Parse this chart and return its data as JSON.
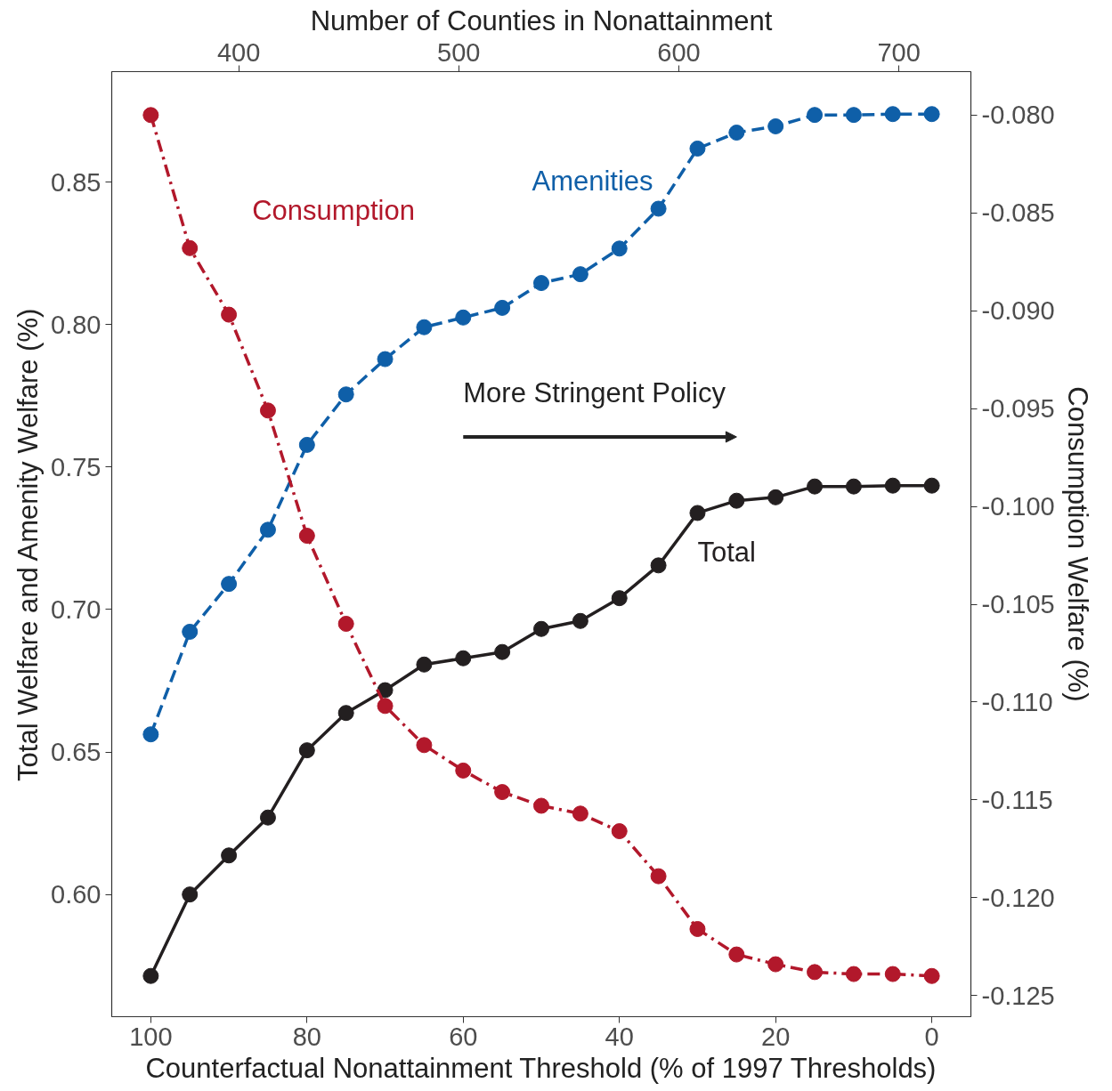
{
  "chart_data": {
    "type": "line",
    "xlabel": "Counterfactual Nonattainment Threshold (% of 1997 Thresholds)",
    "ylabel": "Total Welfare and Amenity Welfare (%)",
    "y2label": "Consumption Welfare (%)",
    "x2label": "Number of Counties in Nonattainment",
    "x": [
      100,
      95,
      90,
      85,
      80,
      75,
      70,
      65,
      60,
      55,
      50,
      45,
      40,
      35,
      30,
      25,
      20,
      15,
      10,
      5,
      0
    ],
    "xlim": [
      105,
      -5
    ],
    "xticks": [
      100,
      80,
      60,
      40,
      20,
      0
    ],
    "x2lim": [
      342.3,
      732.7
    ],
    "x2ticks": [
      400,
      500,
      600,
      700
    ],
    "ylim": [
      0.5571,
      0.8888
    ],
    "yticks": [
      {
        "value": 0.6,
        "label": "0.60"
      },
      {
        "value": 0.65,
        "label": "0.65"
      },
      {
        "value": 0.7,
        "label": "0.70"
      },
      {
        "value": 0.75,
        "label": "0.75"
      },
      {
        "value": 0.8,
        "label": "0.80"
      },
      {
        "value": 0.85,
        "label": "0.85"
      }
    ],
    "y2lim": [
      -0.12608,
      -0.07778
    ],
    "y2ticks": [
      {
        "value": -0.125,
        "label": "-0.125"
      },
      {
        "value": -0.12,
        "label": "-0.120"
      },
      {
        "value": -0.115,
        "label": "-0.115"
      },
      {
        "value": -0.11,
        "label": "-0.110"
      },
      {
        "value": -0.105,
        "label": "-0.105"
      },
      {
        "value": -0.1,
        "label": "-0.100"
      },
      {
        "value": -0.095,
        "label": "-0.095"
      },
      {
        "value": -0.09,
        "label": "-0.090"
      },
      {
        "value": -0.085,
        "label": "-0.085"
      },
      {
        "value": -0.08,
        "label": "-0.080"
      }
    ],
    "series": [
      {
        "name": "Total",
        "color": "#231f20",
        "line_style": "solid",
        "values": [
          0.5714,
          0.6,
          0.6137,
          0.627,
          0.6506,
          0.6637,
          0.6717,
          0.6807,
          0.6829,
          0.6851,
          0.6932,
          0.696,
          0.704,
          0.7155,
          0.7339,
          0.7382,
          0.7394,
          0.7432,
          0.7432,
          0.7435,
          0.7435
        ]
      },
      {
        "name": "Amenities",
        "color": "#0f5fa8",
        "line_style": "dashed",
        "values": [
          0.6562,
          0.6922,
          0.709,
          0.728,
          0.7578,
          0.7755,
          0.7879,
          0.7991,
          0.8025,
          0.8059,
          0.8146,
          0.8177,
          0.8267,
          0.8407,
          0.8618,
          0.8674,
          0.8696,
          0.8736,
          0.8736,
          0.8739,
          0.8739
        ]
      },
      {
        "name": "Consumption",
        "color": "#b2182b",
        "line_style": "dashdot",
        "axis": "y2",
        "values": [
          -0.08,
          -0.0868,
          -0.0902,
          -0.0951,
          -0.1015,
          -0.106,
          -0.1102,
          -0.1122,
          -0.1135,
          -0.1146,
          -0.1153,
          -0.1157,
          -0.1166,
          -0.1189,
          -0.1216,
          -0.1229,
          -0.1234,
          -0.1238,
          -0.1239,
          -0.1239,
          -0.124
        ]
      }
    ],
    "annotations": [
      "More Stringent Policy"
    ],
    "marker": "circle",
    "grid": false
  }
}
